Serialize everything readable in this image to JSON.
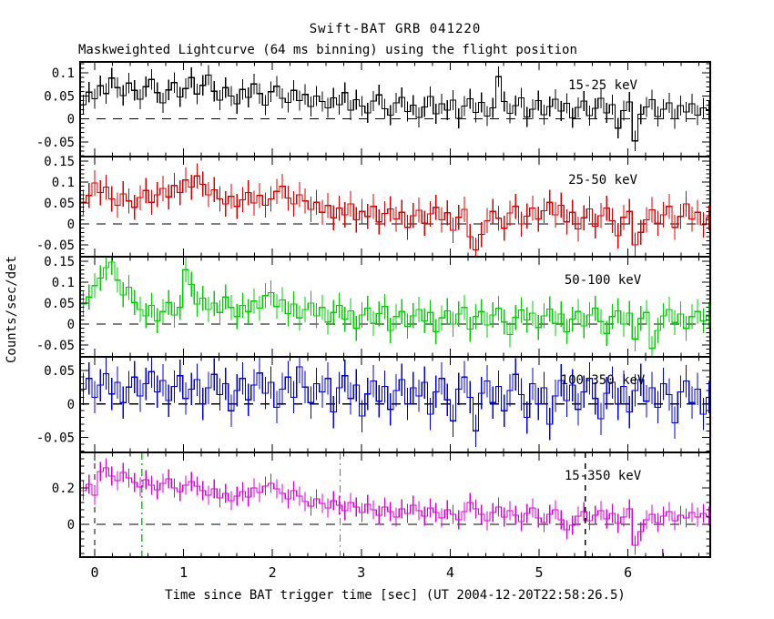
{
  "chart_data": {
    "type": "line",
    "style": "stepped-histogram-with-error-bars",
    "title": "Swift-BAT GRB 041220",
    "subtitle": "Maskweighted Lightcurve (64 ms binning) using the flight position",
    "xlabel": "Time since BAT trigger time [sec] (UT 2004-12-20T22:58:26.5)",
    "ylabel": "Counts/sec/det",
    "x_range": [
      -0.164,
      6.926
    ],
    "bin_width_sec": 0.064,
    "x_first_bin_edge": -0.16,
    "x_tick_labels": [
      {
        "v": 0,
        "t": "0"
      },
      {
        "v": 1,
        "t": "1"
      },
      {
        "v": 2,
        "t": "2"
      },
      {
        "v": 3,
        "t": "3"
      },
      {
        "v": 4,
        "t": "4"
      },
      {
        "v": 5,
        "t": "5"
      },
      {
        "v": 6,
        "t": "6"
      }
    ],
    "x_tick_major": 1.0,
    "x_tick_minor": 0.2,
    "grid": "off",
    "zero_line": {
      "style": "dashed",
      "color": "#000000"
    },
    "vlines_bottom_panel": [
      {
        "t": 0.0,
        "color": "#000000",
        "style": "dashed"
      },
      {
        "t": 5.52,
        "color": "#000000",
        "style": "dashed"
      },
      {
        "t": 0.53,
        "color": "#00d000",
        "style": "dashdot"
      },
      {
        "t": 2.76,
        "color": "#00d000",
        "style": "dashdot"
      }
    ],
    "axis_marks": [
      {
        "t": 6.39,
        "color": "#dd00dd"
      }
    ],
    "panels": [
      {
        "band": "15-25 keV",
        "color": "#000000",
        "ylim": [
          -0.082,
          0.124
        ],
        "ytick_major": 0.05,
        "ytick_minor": 0.01,
        "ytick_labels": [
          {
            "v": 0.1,
            "t": "0.1"
          },
          {
            "v": 0.05,
            "t": "0.05"
          },
          {
            "v": 0,
            "t": "0"
          },
          {
            "v": -0.05,
            "t": "-0.05"
          }
        ],
        "err": 0.022,
        "values": [
          0.031,
          0.058,
          0.044,
          0.072,
          0.055,
          0.089,
          0.068,
          0.051,
          0.078,
          0.062,
          0.043,
          0.07,
          0.086,
          0.057,
          0.035,
          0.063,
          0.079,
          0.048,
          0.066,
          0.09,
          0.054,
          0.073,
          0.095,
          0.06,
          0.041,
          0.068,
          0.05,
          0.033,
          0.064,
          0.047,
          0.076,
          0.055,
          0.03,
          0.059,
          0.071,
          0.045,
          0.036,
          0.062,
          0.04,
          0.053,
          0.027,
          0.05,
          0.038,
          0.024,
          0.046,
          0.031,
          0.057,
          0.019,
          0.042,
          0.028,
          0.013,
          0.039,
          0.052,
          0.022,
          0.008,
          0.035,
          0.047,
          0.016,
          0.03,
          0.003,
          0.026,
          0.049,
          0.011,
          0.033,
          0.019,
          0.041,
          0.001,
          0.028,
          0.044,
          0.014,
          0.036,
          0.006,
          0.024,
          0.092,
          0.038,
          0.012,
          0.029,
          0.046,
          0.004,
          0.021,
          0.04,
          0.009,
          0.027,
          0.043,
          0.017,
          0.034,
          0.002,
          0.025,
          0.039,
          0.007,
          0.023,
          0.045,
          0.013,
          0.031,
          -0.02,
          0.018,
          0.037,
          -0.048,
          0.01,
          0.026,
          0.042,
          0.005,
          0.021,
          0.035,
          0.0,
          0.029,
          0.015,
          0.033,
          0.008,
          0.024,
          0.018
        ]
      },
      {
        "band": "25-50 keV",
        "color": "#dd0000",
        "ylim": [
          -0.078,
          0.161
        ],
        "ytick_major": 0.05,
        "ytick_minor": 0.01,
        "ytick_labels": [
          {
            "v": 0.15,
            "t": "0.15"
          },
          {
            "v": 0.1,
            "t": "0.1"
          },
          {
            "v": 0.05,
            "t": "0.05"
          },
          {
            "v": 0,
            "t": "0"
          },
          {
            "v": -0.05,
            "t": "-0.05"
          }
        ],
        "err": 0.03,
        "values": [
          0.052,
          0.068,
          0.098,
          0.075,
          0.088,
          0.06,
          0.045,
          0.072,
          0.055,
          0.04,
          0.063,
          0.08,
          0.052,
          0.07,
          0.085,
          0.065,
          0.092,
          0.075,
          0.105,
          0.088,
          0.115,
          0.095,
          0.07,
          0.082,
          0.06,
          0.048,
          0.066,
          0.042,
          0.058,
          0.075,
          0.05,
          0.068,
          0.045,
          0.06,
          0.078,
          0.09,
          0.062,
          0.048,
          0.07,
          0.055,
          0.035,
          0.052,
          0.028,
          0.044,
          0.015,
          0.038,
          0.022,
          0.048,
          0.01,
          0.03,
          0.018,
          0.042,
          0.005,
          0.025,
          0.036,
          0.012,
          0.028,
          -0.008,
          0.02,
          0.033,
          0.002,
          0.024,
          0.04,
          0.01,
          0.027,
          -0.015,
          0.016,
          0.035,
          -0.03,
          -0.062,
          -0.025,
          0.008,
          0.03,
          0.014,
          -0.01,
          0.026,
          0.042,
          0.0,
          0.019,
          0.038,
          0.012,
          0.032,
          0.052,
          0.022,
          0.045,
          0.005,
          0.028,
          -0.012,
          0.015,
          0.036,
          -0.005,
          0.02,
          0.038,
          0.008,
          -0.028,
          0.016,
          0.03,
          -0.05,
          -0.02,
          0.01,
          0.034,
          0.002,
          0.022,
          0.042,
          -0.008,
          0.018,
          0.048,
          0.012,
          0.028,
          -0.002,
          0.015
        ]
      },
      {
        "band": "50-100 keV",
        "color": "#00d000",
        "ylim": [
          -0.078,
          0.161
        ],
        "ytick_major": 0.05,
        "ytick_minor": 0.01,
        "ytick_labels": [
          {
            "v": 0.15,
            "t": "0.15"
          },
          {
            "v": 0.1,
            "t": "0.1"
          },
          {
            "v": 0.05,
            "t": "0.05"
          },
          {
            "v": 0,
            "t": "0"
          },
          {
            "v": -0.05,
            "t": "-0.05"
          }
        ],
        "err": 0.03,
        "values": [
          0.048,
          0.065,
          0.092,
          0.11,
          0.135,
          0.148,
          0.105,
          0.07,
          0.088,
          0.052,
          0.035,
          0.02,
          0.045,
          0.008,
          0.03,
          0.052,
          0.022,
          0.04,
          0.13,
          0.095,
          0.048,
          0.062,
          0.035,
          0.05,
          0.028,
          0.065,
          0.04,
          0.018,
          0.045,
          0.03,
          0.055,
          0.038,
          0.068,
          0.075,
          0.042,
          0.058,
          0.025,
          0.048,
          0.015,
          0.035,
          0.05,
          0.02,
          0.04,
          0.005,
          0.028,
          0.045,
          0.012,
          0.032,
          -0.01,
          0.022,
          0.038,
          0.002,
          0.025,
          0.042,
          -0.015,
          0.018,
          0.03,
          -0.005,
          0.02,
          0.035,
          0.008,
          0.028,
          -0.018,
          0.015,
          0.032,
          0.0,
          0.024,
          0.04,
          -0.012,
          0.018,
          0.03,
          -0.002,
          0.022,
          0.038,
          0.005,
          -0.025,
          0.016,
          0.034,
          0.01,
          0.026,
          -0.008,
          0.02,
          0.036,
          0.002,
          0.024,
          -0.018,
          0.012,
          0.03,
          -0.004,
          0.022,
          0.038,
          0.006,
          -0.022,
          0.018,
          0.032,
          0.0,
          0.026,
          -0.035,
          0.014,
          0.028,
          -0.058,
          -0.015,
          0.02,
          0.035,
          0.004,
          0.024,
          -0.01,
          0.018,
          0.03,
          0.008,
          0.022
        ]
      },
      {
        "band": "100-350 keV",
        "color": "#0000dd",
        "ylim": [
          -0.072,
          0.07
        ],
        "ytick_major": 0.05,
        "ytick_minor": 0.01,
        "ytick_labels": [
          {
            "v": 0.05,
            "t": "0.05"
          },
          {
            "v": 0,
            "t": "0"
          },
          {
            "v": -0.05,
            "t": "-0.05"
          }
        ],
        "err": 0.024,
        "values": [
          0.022,
          0.038,
          0.01,
          0.028,
          0.045,
          0.015,
          0.032,
          0.002,
          0.025,
          0.04,
          0.012,
          0.03,
          0.048,
          0.018,
          0.035,
          0.005,
          0.026,
          0.042,
          0.008,
          0.022,
          0.036,
          0.0,
          0.024,
          0.044,
          0.014,
          0.03,
          -0.01,
          0.02,
          0.038,
          0.006,
          0.028,
          0.046,
          0.016,
          0.032,
          -0.005,
          0.022,
          0.04,
          0.01,
          0.055,
          0.025,
          0.002,
          0.03,
          0.018,
          0.038,
          -0.012,
          0.024,
          0.042,
          0.008,
          0.028,
          -0.018,
          0.015,
          0.034,
          0.004,
          0.026,
          -0.008,
          0.02,
          0.036,
          0.0,
          0.024,
          0.012,
          0.032,
          -0.015,
          0.018,
          0.038,
          0.006,
          -0.025,
          0.022,
          0.04,
          0.01,
          -0.04,
          0.016,
          0.034,
          0.002,
          0.026,
          -0.01,
          0.02,
          0.044,
          0.014,
          -0.02,
          0.03,
          0.0,
          0.024,
          -0.03,
          0.012,
          0.035,
          0.005,
          0.028,
          -0.008,
          0.018,
          0.038,
          0.008,
          -0.022,
          0.016,
          0.032,
          0.0,
          0.026,
          -0.012,
          0.02,
          0.036,
          0.004,
          0.024,
          -0.005,
          0.03,
          0.014,
          -0.028,
          0.018,
          0.034,
          0.002,
          0.022,
          -0.015,
          0.01
        ]
      },
      {
        "band": "15-350 keV",
        "color": "#dd00dd",
        "ylim": [
          -0.18,
          0.395
        ],
        "ytick_major": 0.2,
        "ytick_minor": 0.04,
        "ytick_labels": [
          {
            "v": 0.2,
            "t": "0.2"
          },
          {
            "v": 0,
            "t": "0"
          }
        ],
        "err": 0.052,
        "values": [
          0.185,
          0.22,
          0.16,
          0.29,
          0.31,
          0.265,
          0.24,
          0.285,
          0.255,
          0.23,
          0.205,
          0.245,
          0.215,
          0.19,
          0.225,
          0.25,
          0.2,
          0.18,
          0.215,
          0.235,
          0.21,
          0.185,
          0.16,
          0.195,
          0.145,
          0.17,
          0.13,
          0.155,
          0.18,
          0.15,
          0.2,
          0.175,
          0.21,
          0.225,
          0.195,
          0.17,
          0.14,
          0.185,
          0.155,
          0.125,
          0.1,
          0.14,
          0.115,
          0.09,
          0.13,
          0.105,
          0.075,
          0.12,
          0.095,
          0.065,
          0.11,
          0.08,
          0.05,
          0.095,
          0.07,
          0.04,
          0.085,
          0.06,
          0.105,
          0.075,
          0.045,
          0.09,
          0.065,
          0.035,
          0.08,
          0.055,
          0.025,
          0.07,
          0.12,
          0.085,
          0.055,
          0.02,
          0.065,
          0.095,
          0.04,
          0.075,
          0.05,
          0.015,
          0.06,
          0.09,
          0.035,
          0.01,
          0.055,
          0.08,
          0.025,
          -0.03,
          -0.005,
          0.045,
          0.07,
          0.02,
          0.05,
          0.075,
          0.03,
          0.06,
          0.005,
          0.04,
          0.085,
          -0.115,
          -0.04,
          0.025,
          0.055,
          0.01,
          0.045,
          0.07,
          0.02,
          0.05,
          0.035,
          0.065,
          0.04,
          0.06,
          0.045
        ]
      }
    ]
  }
}
